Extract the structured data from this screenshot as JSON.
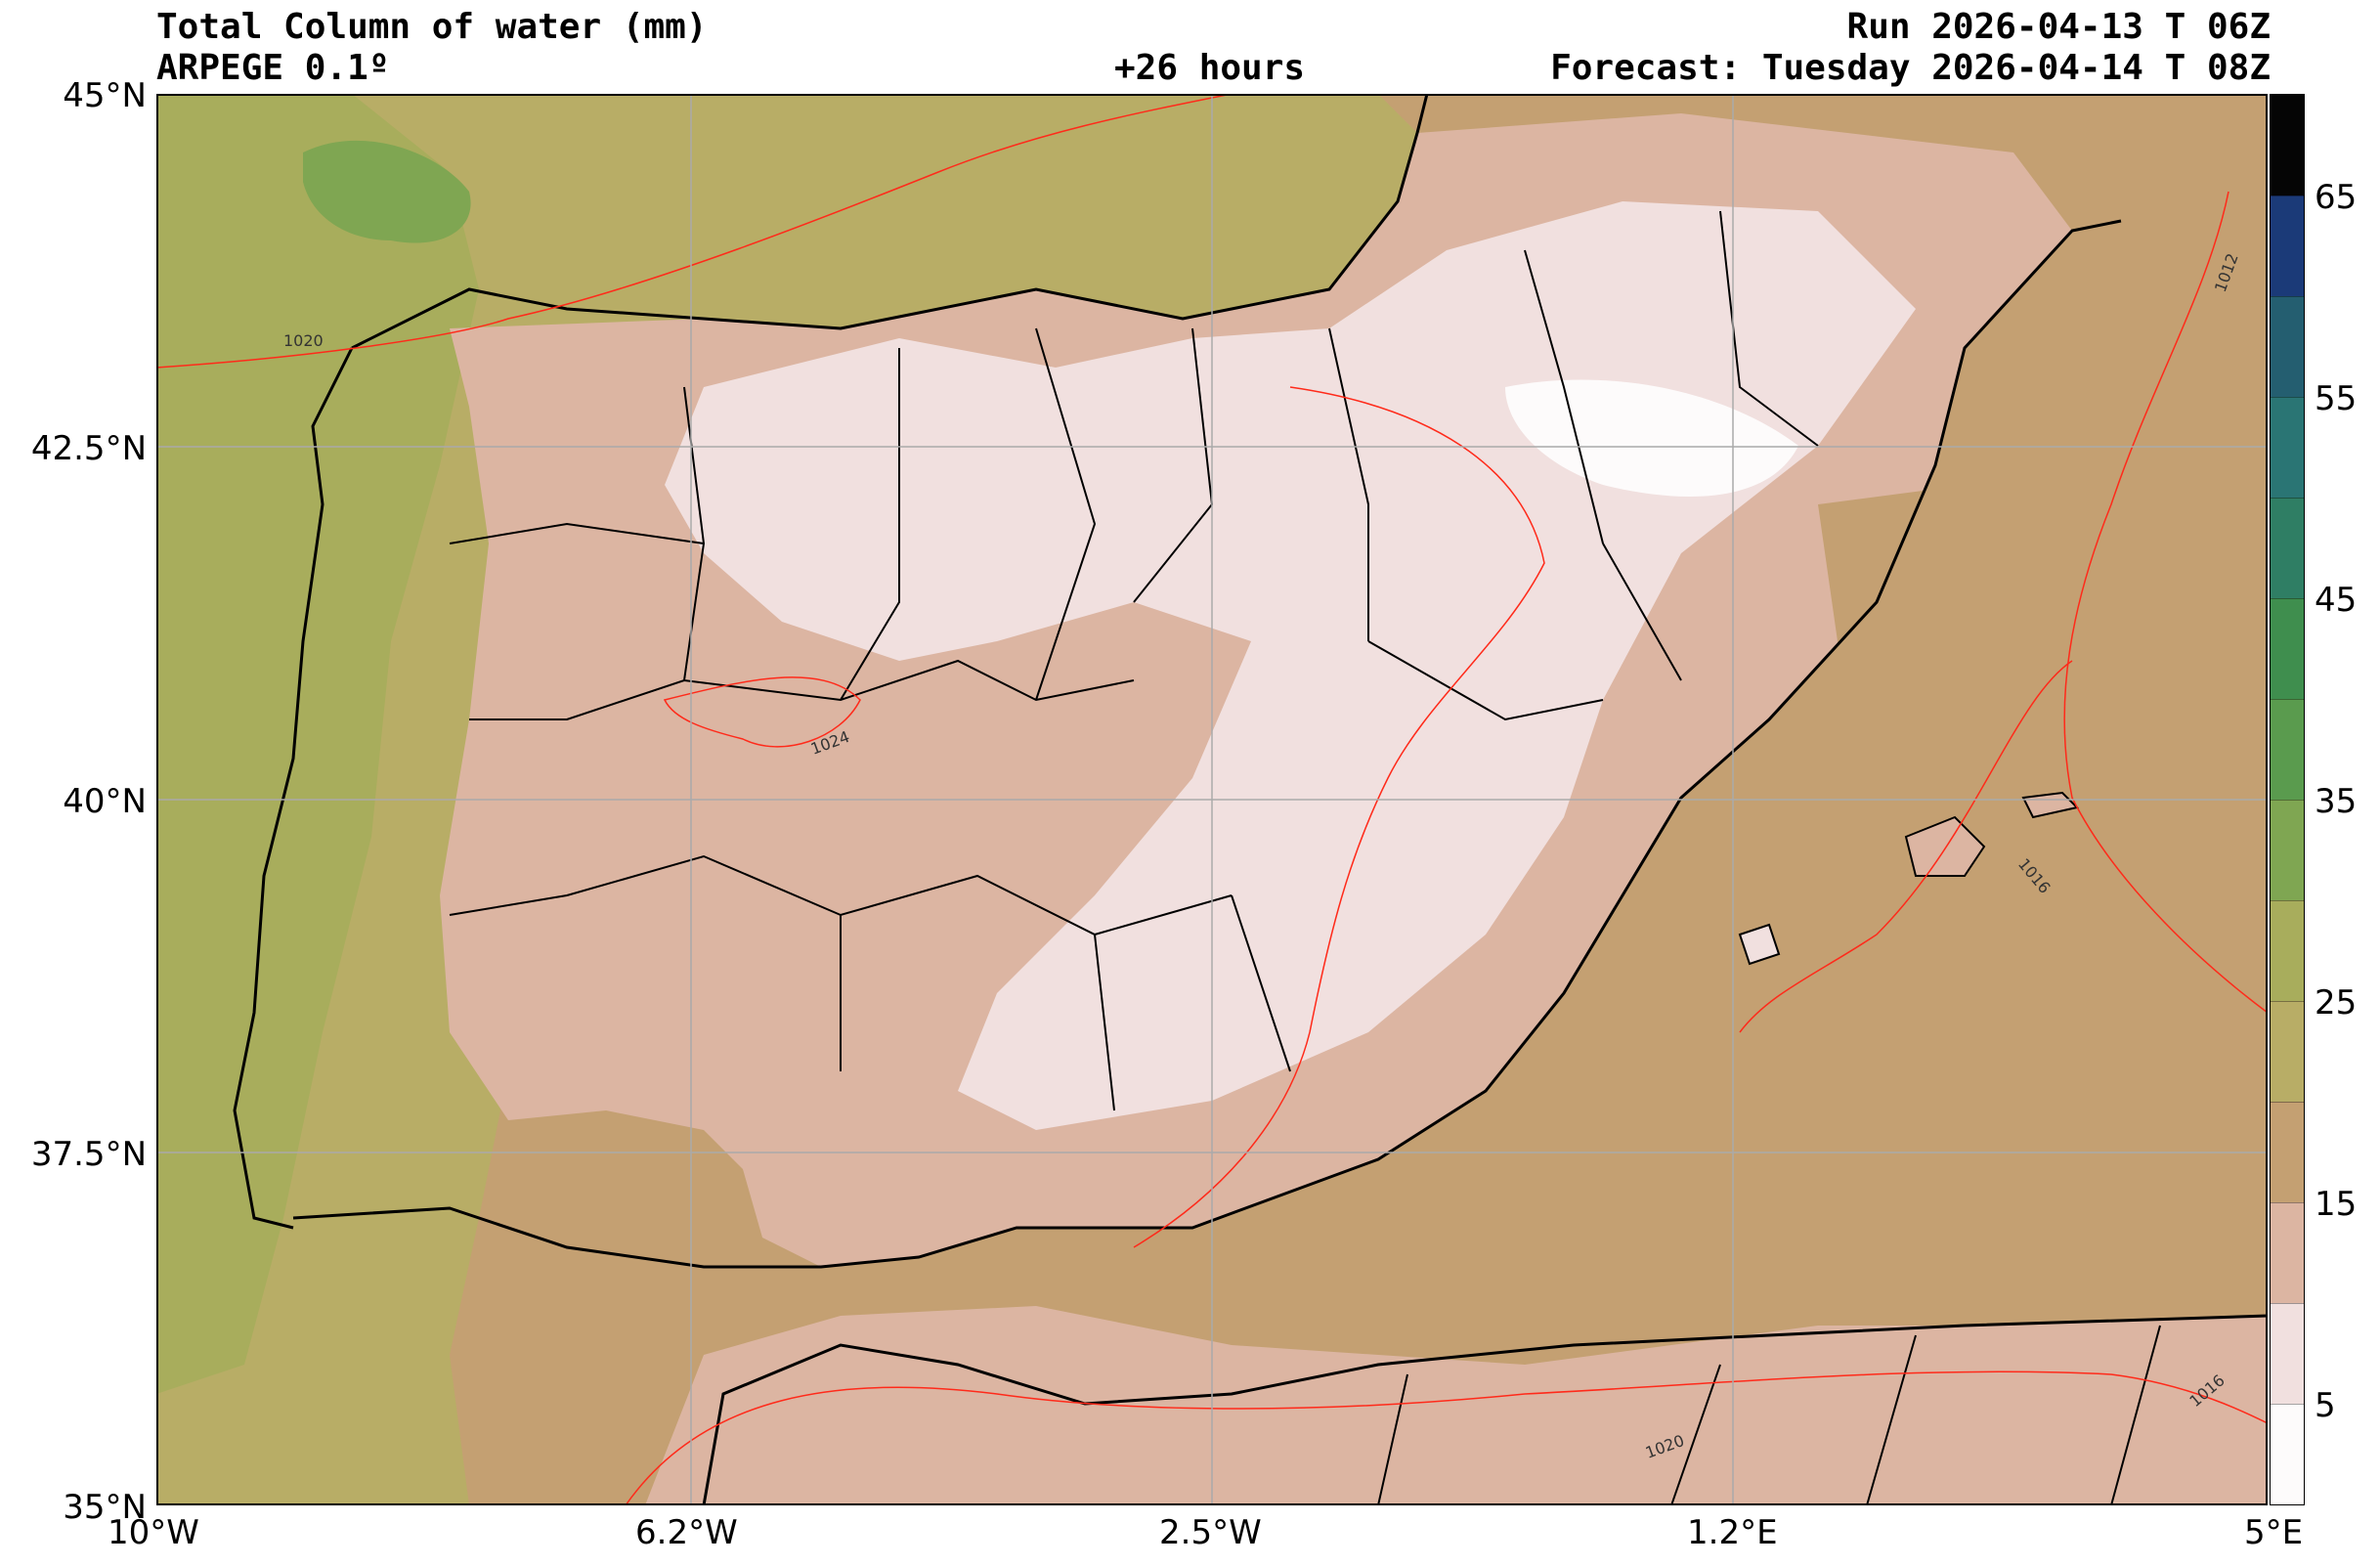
{
  "header": {
    "title": "Total Column of water (mm)",
    "model": "ARPEGE 0.1º",
    "lead_time": "+26 hours",
    "run": "Run 2026-04-13 T 06Z",
    "forecast": "Forecast: Tuesday 2026-04-14 T 08Z"
  },
  "axes": {
    "lat_labels": [
      "45°N",
      "42.5°N",
      "40°N",
      "37.5°N",
      "35°N"
    ],
    "lon_labels": [
      "10°W",
      "6.2°W",
      "2.5°W",
      "1.2°E",
      "5°E"
    ]
  },
  "colorbar": {
    "tick_labels": [
      "5",
      "15",
      "25",
      "35",
      "45",
      "55",
      "65"
    ],
    "bands": [
      {
        "from": 0,
        "to": 5,
        "color": "#fdfbfb"
      },
      {
        "from": 5,
        "to": 10,
        "color": "#f1e0df"
      },
      {
        "from": 10,
        "to": 15,
        "color": "#dcb5a2"
      },
      {
        "from": 15,
        "to": 20,
        "color": "#c4a072"
      },
      {
        "from": 20,
        "to": 25,
        "color": "#b8ad66"
      },
      {
        "from": 25,
        "to": 30,
        "color": "#a8ad5c"
      },
      {
        "from": 30,
        "to": 35,
        "color": "#7fa652"
      },
      {
        "from": 35,
        "to": 40,
        "color": "#5a9b4e"
      },
      {
        "from": 40,
        "to": 45,
        "color": "#3f8e4e"
      },
      {
        "from": 45,
        "to": 50,
        "color": "#2f7e64"
      },
      {
        "from": 50,
        "to": 55,
        "color": "#2a7574"
      },
      {
        "from": 55,
        "to": 60,
        "color": "#245e70"
      },
      {
        "from": 60,
        "to": 65,
        "color": "#1b3a78"
      },
      {
        "from": 65,
        "to": 70,
        "color": "#050505"
      }
    ]
  },
  "isobar_labels": [
    "1020",
    "1024",
    "1016",
    "1012",
    "1016",
    "1020"
  ],
  "colors": {
    "ocean_west": "#a8ad5c",
    "isobar": "#ff2a1a",
    "border": "#000000",
    "gridline": "#aaaaaa"
  }
}
